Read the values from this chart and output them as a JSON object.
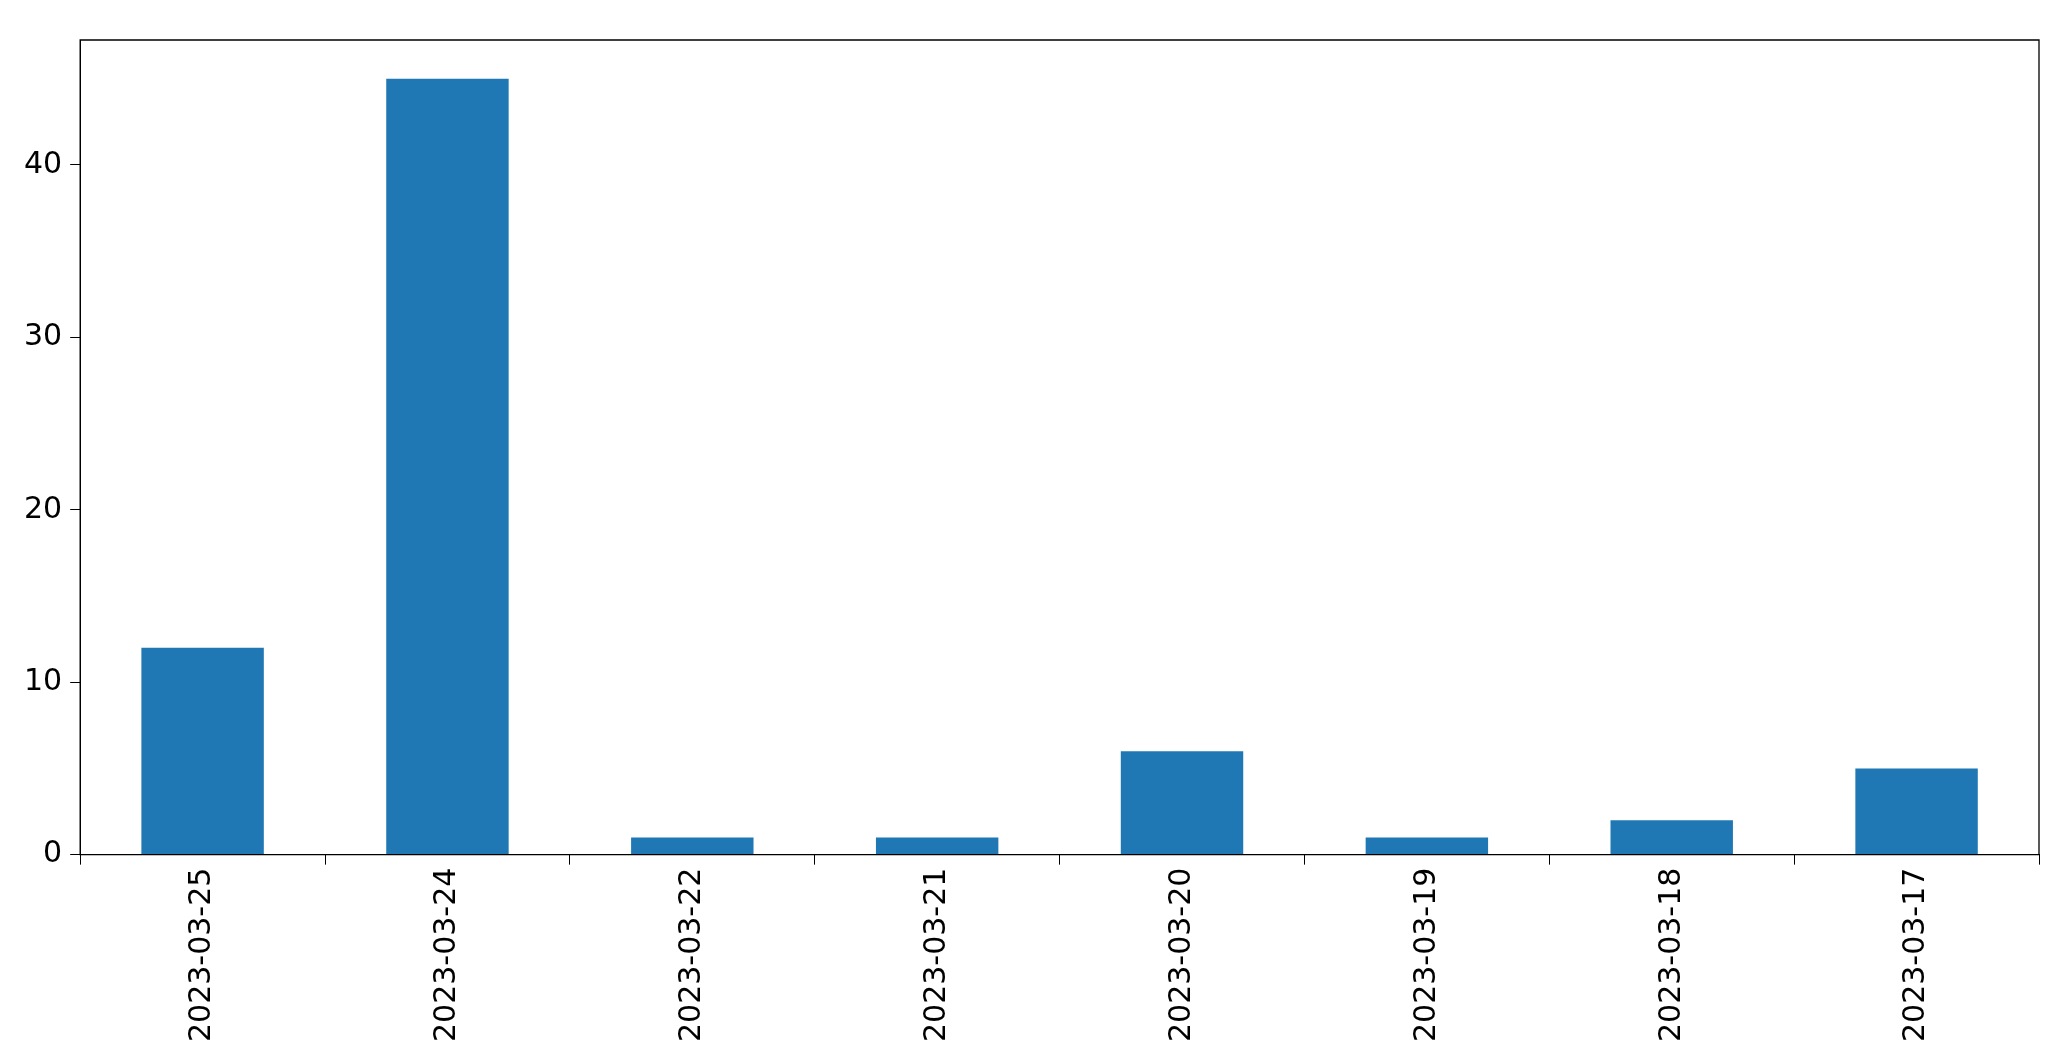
{
  "chart_data": {
    "type": "bar",
    "categories": [
      "2023-03-25",
      "2023-03-24",
      "2023-03-22",
      "2023-03-21",
      "2023-03-20",
      "2023-03-19",
      "2023-03-18",
      "2023-03-17"
    ],
    "values": [
      12,
      45,
      1,
      1,
      6,
      1,
      2,
      5
    ],
    "color": "#1f77b4",
    "ylim": [
      0,
      47.25
    ],
    "yticks": [
      0,
      10,
      20,
      30,
      40
    ],
    "grid": false,
    "legend": false
  }
}
